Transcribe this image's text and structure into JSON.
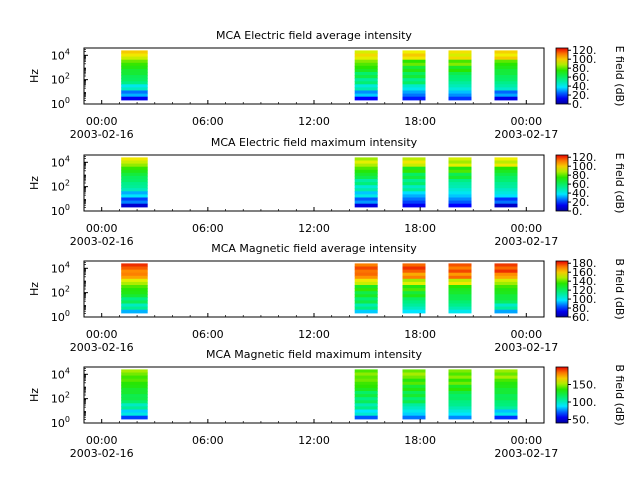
{
  "chart_data": [
    {
      "type": "heatmap",
      "title": "MCA  Electric field average intensity",
      "ylabel": "Hz",
      "y_scale": "log",
      "y_ticks": [
        {
          "base": "10",
          "exp": "0"
        },
        {
          "base": "10",
          "exp": "2"
        },
        {
          "base": "10",
          "exp": "4"
        }
      ],
      "x_ticks": [
        "00:00",
        "06:00",
        "12:00",
        "18:00",
        "00:00"
      ],
      "x_dates": [
        "2003-02-16",
        "2003-02-17"
      ],
      "xlim_hours": [
        -1,
        25
      ],
      "colorbar": {
        "label": "E field (dB)",
        "range": [
          0,
          125
        ],
        "ticks": [
          "0.",
          "20.",
          "40.",
          "60.",
          "80.",
          "100.",
          "120."
        ],
        "tick_values": [
          0,
          20,
          40,
          60,
          80,
          100,
          120
        ]
      },
      "data_intervals_hours": [
        [
          1.1,
          2.6
        ],
        [
          14.3,
          15.6
        ],
        [
          17.0,
          18.3
        ],
        [
          19.6,
          20.9
        ],
        [
          22.2,
          23.5
        ]
      ],
      "colormap": "low-high",
      "intensity_profile": [
        110,
        95,
        80,
        70,
        62,
        55,
        45,
        30
      ]
    },
    {
      "type": "heatmap",
      "title": "MCA  Electric field maximum intensity",
      "ylabel": "Hz",
      "y_scale": "log",
      "y_ticks": [
        {
          "base": "10",
          "exp": "0"
        },
        {
          "base": "10",
          "exp": "2"
        },
        {
          "base": "10",
          "exp": "4"
        }
      ],
      "x_ticks": [
        "00:00",
        "06:00",
        "12:00",
        "18:00",
        "00:00"
      ],
      "x_dates": [
        "2003-02-16",
        "2003-02-17"
      ],
      "xlim_hours": [
        -1,
        25
      ],
      "colorbar": {
        "label": "E field (dB)",
        "range": [
          0,
          125
        ],
        "ticks": [
          "0.",
          "20.",
          "40.",
          "60.",
          "80.",
          "100.",
          "120."
        ],
        "tick_values": [
          0,
          20,
          40,
          60,
          80,
          100,
          120
        ]
      },
      "data_intervals_hours": [
        [
          1.1,
          2.6
        ],
        [
          14.3,
          15.6
        ],
        [
          17.0,
          18.3
        ],
        [
          19.6,
          20.9
        ],
        [
          22.2,
          23.5
        ]
      ],
      "colormap": "low-high",
      "intensity_profile": [
        115,
        100,
        88,
        78,
        70,
        62,
        50,
        35
      ]
    },
    {
      "type": "heatmap",
      "title": "MCA  Magnetic field average intensity",
      "ylabel": "Hz",
      "y_scale": "log",
      "y_ticks": [
        {
          "base": "10",
          "exp": "0"
        },
        {
          "base": "10",
          "exp": "2"
        },
        {
          "base": "10",
          "exp": "4"
        }
      ],
      "x_ticks": [
        "00:00",
        "06:00",
        "12:00",
        "18:00",
        "00:00"
      ],
      "x_dates": [
        "2003-02-16",
        "2003-02-17"
      ],
      "xlim_hours": [
        -1,
        25
      ],
      "colorbar": {
        "label": "B field (dB)",
        "range": [
          60,
          185
        ],
        "ticks": [
          "60.",
          "80.",
          "100.",
          "120.",
          "140.",
          "160.",
          "180."
        ],
        "tick_values": [
          60,
          80,
          100,
          120,
          140,
          160,
          180
        ]
      },
      "data_intervals_hours": [
        [
          1.1,
          2.6
        ],
        [
          14.3,
          15.6
        ],
        [
          17.0,
          18.3
        ],
        [
          19.6,
          20.9
        ],
        [
          22.2,
          23.5
        ]
      ],
      "colormap": "low-high",
      "intensity_profile": [
        150,
        135,
        125,
        118,
        110,
        95,
        75,
        70
      ]
    },
    {
      "type": "heatmap",
      "title": "MCA  Magnetic field maximum intensity",
      "ylabel": "Hz",
      "y_scale": "log",
      "y_ticks": [
        {
          "base": "10",
          "exp": "0"
        },
        {
          "base": "10",
          "exp": "2"
        },
        {
          "base": "10",
          "exp": "4"
        }
      ],
      "x_ticks": [
        "00:00",
        "06:00",
        "12:00",
        "18:00",
        "00:00"
      ],
      "x_dates": [
        "2003-02-16",
        "2003-02-17"
      ],
      "xlim_hours": [
        -1,
        25
      ],
      "colorbar": {
        "label": "B field (dB)",
        "range": [
          40,
          200
        ],
        "ticks": [
          "50.",
          "100.",
          "150."
        ],
        "tick_values": [
          50,
          100,
          150
        ]
      },
      "data_intervals_hours": [
        [
          1.1,
          2.6
        ],
        [
          14.3,
          15.6
        ],
        [
          17.0,
          18.3
        ],
        [
          19.6,
          20.9
        ],
        [
          22.2,
          23.5
        ]
      ],
      "colormap": "low-high",
      "intensity_profile": [
        170,
        150,
        135,
        125,
        118,
        110,
        100,
        95
      ]
    }
  ]
}
